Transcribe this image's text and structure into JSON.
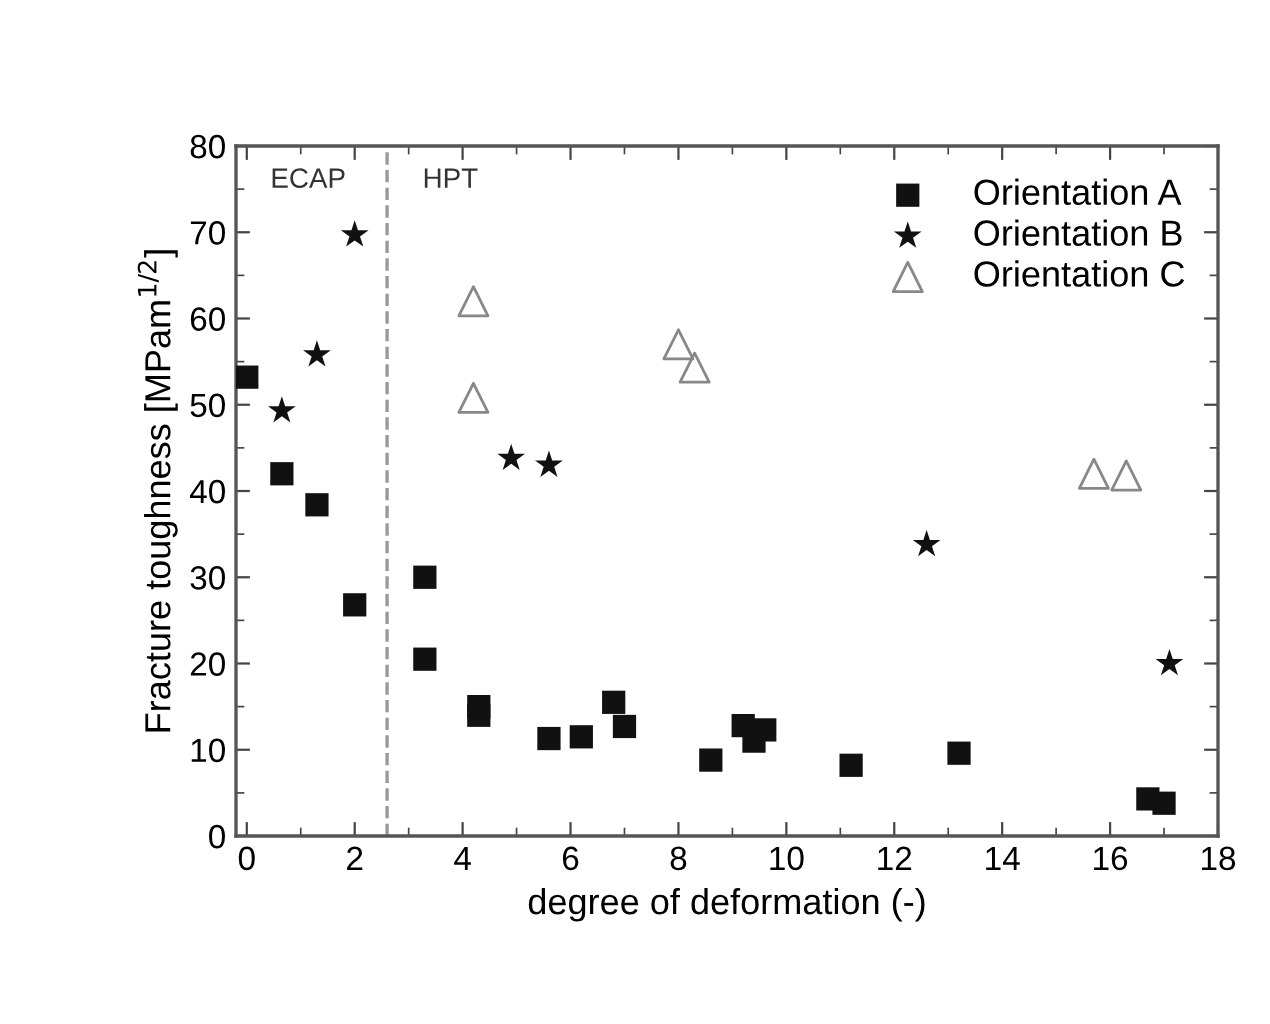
{
  "chart_data": {
    "type": "scatter",
    "xlabel": "degree of deformation (-)",
    "ylabel": "Fracture toughness [MPam$^{1/2}$]",
    "xlim": [
      -0.2,
      18
    ],
    "xticks": [
      0,
      2,
      4,
      6,
      8,
      10,
      12,
      14,
      16,
      18
    ],
    "ylim": [
      0,
      80
    ],
    "yticks": [
      0,
      10,
      20,
      30,
      40,
      50,
      60,
      70,
      80
    ],
    "grid": false,
    "legend": "top right",
    "series": [
      {
        "name": "Orientation A",
        "color": "#111111",
        "marker": "square",
        "x": [
          0,
          0.65,
          1.3,
          2,
          3.3,
          3.3,
          4.3,
          4.3,
          5.6,
          6.2,
          6.8,
          7,
          8.6,
          9.2,
          9.4,
          9.6,
          11.2,
          13.2,
          16.7,
          17
        ],
        "values": [
          53.2,
          42,
          38.4,
          26.8,
          30,
          20.5,
          15,
          14,
          11.3,
          11.5,
          15.5,
          12.7,
          8.8,
          12.8,
          11,
          12.3,
          8.2,
          9.6,
          4.3,
          3.8
        ]
      },
      {
        "name": "Orientation B",
        "color": "#111111",
        "marker": "star",
        "x": [
          0.65,
          1.3,
          2,
          4.9,
          5.6,
          12.6,
          17.1
        ],
        "values": [
          49.3,
          55.8,
          69.7,
          43.8,
          43,
          33.8,
          20
        ]
      },
      {
        "name": "Orientation C",
        "color": "#888888",
        "marker": "triangle",
        "x": [
          4.2,
          4.2,
          8,
          8.3,
          15.7,
          16.3
        ],
        "values": [
          62,
          50.8,
          57,
          54.3,
          42,
          41.8
        ]
      }
    ],
    "ref_lines": [
      {
        "axis": "x",
        "value": 2.6,
        "color": "#999999",
        "line_style": "dashed"
      }
    ],
    "annotations": [
      "ECAP",
      "HPT"
    ]
  }
}
